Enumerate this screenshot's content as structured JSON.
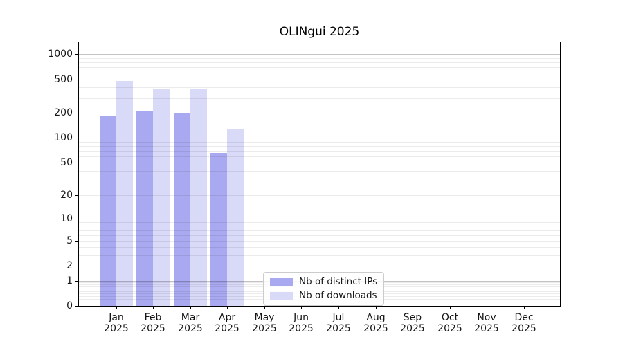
{
  "title": "OLINgui 2025",
  "colors": {
    "distinct_ips_bar": "#a9a9f1",
    "downloads_bar": "#d9d9f8",
    "grid_minor": "rgba(0,0,0,0.08)",
    "grid_major": "rgba(0,0,0,0.23)",
    "spine": "#000000",
    "legend_border": "#cccccc"
  },
  "chart_data": {
    "type": "bar",
    "title": "OLINgui 2025",
    "categories": [
      "Jan",
      "Feb",
      "Mar",
      "Apr",
      "May",
      "Jun",
      "Jul",
      "Aug",
      "Sep",
      "Oct",
      "Nov",
      "Dec"
    ],
    "year": "2025",
    "series": [
      {
        "name": "Nb of distinct IPs",
        "color": "#a9a9f1",
        "values": [
          185,
          210,
          195,
          66,
          0,
          0,
          0,
          0,
          0,
          0,
          0,
          0
        ]
      },
      {
        "name": "Nb of downloads",
        "color": "#d9d9f8",
        "values": [
          480,
          390,
          390,
          125,
          0,
          0,
          0,
          0,
          0,
          0,
          0,
          0
        ]
      }
    ],
    "yscale": "log1p",
    "ylim": [
      0,
      1400
    ],
    "yticks": [
      0,
      1,
      2,
      5,
      10,
      20,
      50,
      100,
      200,
      500,
      1000
    ],
    "major_gridlines": [
      1,
      10,
      100,
      1000
    ],
    "minor_gridlines": [
      0.2,
      0.3,
      0.4,
      0.5,
      0.6,
      0.7,
      0.8,
      0.9,
      2,
      3,
      4,
      5,
      6,
      7,
      8,
      9,
      20,
      30,
      40,
      50,
      60,
      70,
      80,
      90,
      200,
      300,
      400,
      500,
      600,
      700,
      800,
      900
    ],
    "grid": true,
    "legend_position": "lower center-left inside plot"
  }
}
